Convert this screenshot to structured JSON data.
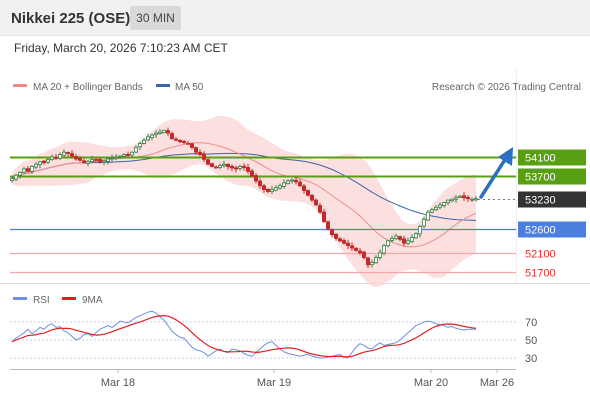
{
  "header": {
    "title": "Nikkei 225 (OSE)",
    "timeframe": "30 MIN"
  },
  "timestamp": "Friday, March 20, 2026 7:10:23 AM CET",
  "legend": {
    "ma20_label": "MA 20 + Bollinger Bands",
    "ma50_label": "MA 50",
    "copyright": "Research © 2026 Trading Central"
  },
  "osc_legend": {
    "rsi_label": "RSI",
    "ma9_label": "9MA"
  },
  "colors": {
    "candle_up": "#3a7d44",
    "candle_down": "#c22b2b",
    "ma20": "#f08a8a",
    "ma50": "#3a64a6",
    "bollinger_fill": "#fbd6d6",
    "resistance": "#58a012",
    "pivot": "#4a7fe0",
    "support": "#f0a8a8",
    "current": "#333333",
    "rsi": "#6f8fe0",
    "ma9": "#e02020",
    "arrow": "#2a6fc0"
  },
  "chart_data": {
    "type": "candlestick",
    "y_range": [
      51500,
      54500
    ],
    "levels": [
      {
        "label": "54100",
        "value": 54100,
        "kind": "resistance"
      },
      {
        "label": "53700",
        "value": 53700,
        "kind": "resistance"
      },
      {
        "label": "53230",
        "value": 53230,
        "kind": "current"
      },
      {
        "label": "52600",
        "value": 52600,
        "kind": "pivot"
      },
      {
        "label": "52100",
        "value": 52100,
        "kind": "support"
      },
      {
        "label": "51700",
        "value": 51700,
        "kind": "support"
      }
    ],
    "x_labels": [
      "Mar 18",
      "Mar 19",
      "Mar 20",
      "Mar 26"
    ],
    "closes": [
      53650,
      53720,
      53780,
      53850,
      53800,
      53900,
      53950,
      54000,
      53980,
      54050,
      54100,
      54080,
      54150,
      54200,
      54180,
      54120,
      54060,
      54030,
      53980,
      54000,
      54050,
      54040,
      54000,
      54020,
      54060,
      54080,
      54100,
      54120,
      54150,
      54130,
      54200,
      54300,
      54380,
      54450,
      54520,
      54560,
      54600,
      54620,
      54650,
      54600,
      54480,
      54450,
      54420,
      54400,
      54380,
      54300,
      54200,
      54150,
      54050,
      53950,
      53900,
      53880,
      53920,
      53950,
      53900,
      53870,
      53850,
      53900,
      53880,
      53800,
      53700,
      53600,
      53500,
      53420,
      53380,
      53420,
      53460,
      53500,
      53560,
      53600,
      53620,
      53580,
      53500,
      53400,
      53300,
      53200,
      53100,
      52950,
      52750,
      52600,
      52480,
      52400,
      52350,
      52300,
      52250,
      52200,
      52150,
      52100,
      52000,
      51850,
      51900,
      52000,
      52100,
      52250,
      52350,
      52400,
      52450,
      52380,
      52300,
      52350,
      52420,
      52500,
      52650,
      52800,
      52950,
      53000,
      53050,
      53100,
      53150,
      53200,
      53220,
      53250,
      53280,
      53250,
      53230,
      53220,
      53230
    ],
    "rsi": [
      48,
      52,
      55,
      58,
      62,
      57,
      60,
      64,
      62,
      66,
      68,
      64,
      65,
      60,
      58,
      54,
      50,
      52,
      56,
      57,
      54,
      58,
      62,
      64,
      66,
      64,
      67,
      71,
      70,
      69,
      72,
      75,
      77,
      79,
      81,
      82,
      80,
      76,
      72,
      66,
      60,
      56,
      53,
      52,
      47,
      42,
      39,
      38,
      36,
      32,
      35,
      38,
      40,
      37,
      36,
      40,
      39,
      38,
      35,
      33,
      32,
      36,
      40,
      44,
      47,
      48,
      44,
      40,
      37,
      35,
      34,
      33,
      32,
      33,
      34,
      32,
      31,
      30,
      30,
      31,
      32,
      33,
      34,
      31,
      30,
      36,
      42,
      46,
      44,
      41,
      40,
      44,
      47,
      44,
      45,
      46,
      47,
      50,
      54,
      58,
      62,
      66,
      68,
      70,
      71,
      70,
      68,
      67,
      66,
      64,
      65,
      63,
      62,
      61,
      62,
      62,
      62
    ],
    "rsi_levels": [
      70,
      50,
      30
    ]
  }
}
